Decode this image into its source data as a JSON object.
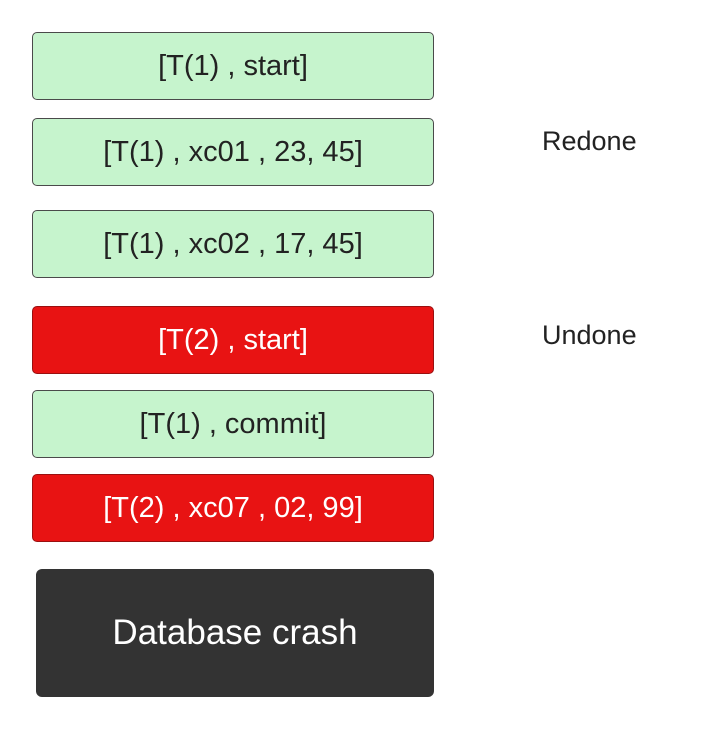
{
  "log_entries": [
    {
      "text": "[T(1) , start]",
      "status": "redone",
      "color": "#c6f4cd"
    },
    {
      "text": "[T(1) , xc01 , 23, 45]",
      "status": "redone",
      "color": "#c6f4cd"
    },
    {
      "text": "[T(1) , xc02 , 17, 45]",
      "status": "redone",
      "color": "#c6f4cd"
    },
    {
      "text": "[T(2) , start]",
      "status": "undone",
      "color": "#e81313"
    },
    {
      "text": "[T(1) , commit]",
      "status": "redone",
      "color": "#c6f4cd"
    },
    {
      "text": "[T(2) , xc07 , 02, 99]",
      "status": "undone",
      "color": "#e81313"
    }
  ],
  "crash": {
    "text": "Database crash",
    "color": "#333333"
  },
  "labels": {
    "redone": "Redone",
    "undone": "Undone"
  }
}
